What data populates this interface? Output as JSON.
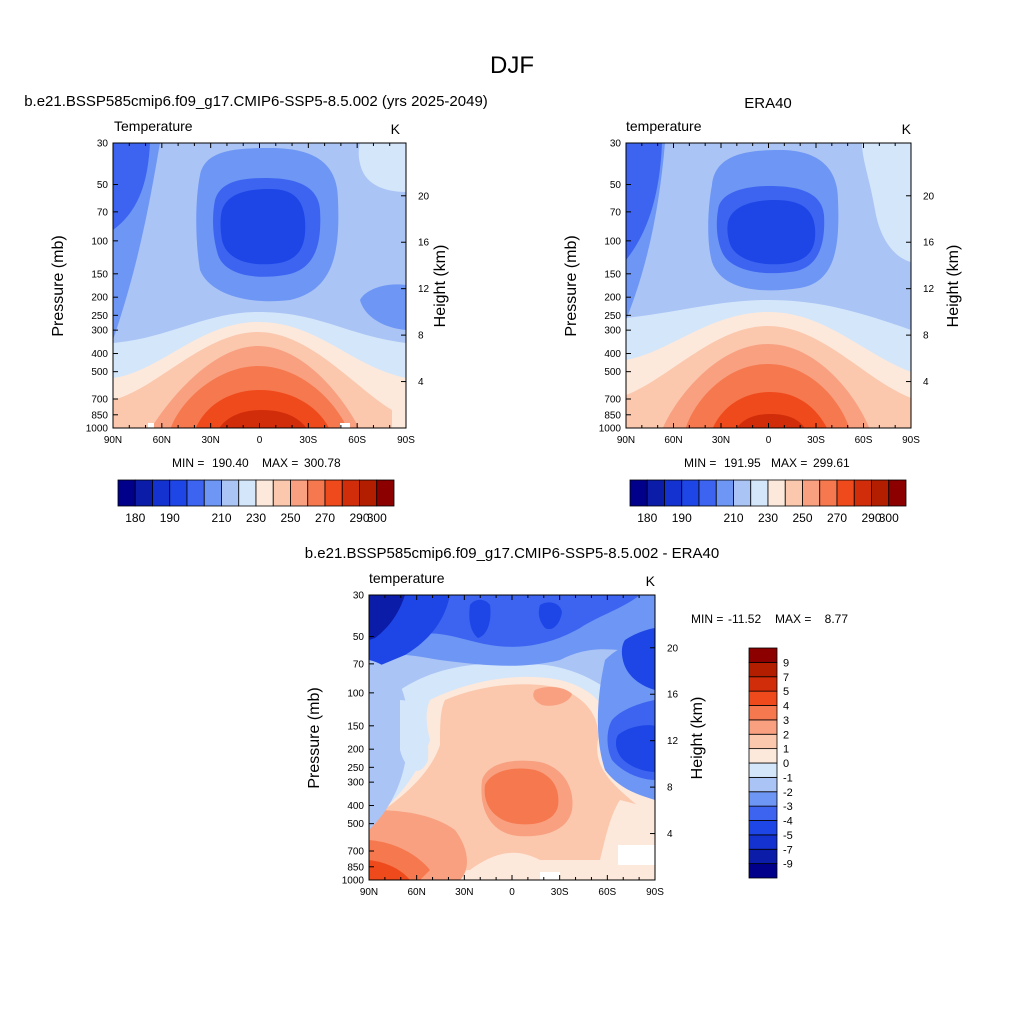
{
  "page_title": "DJF",
  "stat_label_min": "MIN =",
  "stat_label_max": "MAX =",
  "chart_data": [
    {
      "id": "model",
      "type": "heatmap",
      "title": "b.e21.BSSP585cmip6.f09_g17.CMIP6-SSP5-8.5.002 (yrs 2025-2049)",
      "left_string": "Temperature",
      "right_string": "K",
      "xlabel": "",
      "ylabel": "Pressure (mb)",
      "ylabel_right": "Height (km)",
      "x_ticks": [
        "90N",
        "60N",
        "30N",
        "0",
        "30S",
        "60S",
        "90S"
      ],
      "y_ticks": [
        30,
        50,
        70,
        100,
        150,
        200,
        250,
        300,
        400,
        500,
        700,
        850,
        1000
      ],
      "y_right_ticks": [
        4,
        8,
        12,
        16,
        20
      ],
      "ylim": [
        1000,
        30
      ],
      "y_log": true,
      "min_text": "190.40",
      "max_text": "300.78",
      "colorbar": {
        "orientation": "horizontal",
        "levels": [
          180,
          185,
          190,
          195,
          200,
          210,
          220,
          230,
          240,
          250,
          260,
          270,
          280,
          290,
          300
        ],
        "labels": [
          "180",
          "190",
          "210",
          "230",
          "250",
          "270",
          "290",
          "300"
        ],
        "label_levels": [
          180,
          190,
          210,
          230,
          250,
          270,
          290,
          300
        ]
      }
    },
    {
      "id": "obs",
      "type": "heatmap",
      "title": "ERA40",
      "left_string": "temperature",
      "right_string": "K",
      "xlabel": "",
      "ylabel": "Pressure (mb)",
      "ylabel_right": "Height (km)",
      "x_ticks": [
        "90N",
        "60N",
        "30N",
        "0",
        "30S",
        "60S",
        "90S"
      ],
      "y_ticks": [
        30,
        50,
        70,
        100,
        150,
        200,
        250,
        300,
        400,
        500,
        700,
        850,
        1000
      ],
      "y_right_ticks": [
        4,
        8,
        12,
        16,
        20
      ],
      "ylim": [
        1000,
        30
      ],
      "y_log": true,
      "min_text": "191.95",
      "max_text": "299.61",
      "colorbar": {
        "orientation": "horizontal",
        "levels": [
          180,
          185,
          190,
          195,
          200,
          210,
          220,
          230,
          240,
          250,
          260,
          270,
          280,
          290,
          300
        ],
        "labels": [
          "180",
          "190",
          "210",
          "230",
          "250",
          "270",
          "290",
          "300"
        ],
        "label_levels": [
          180,
          190,
          210,
          230,
          250,
          270,
          290,
          300
        ]
      }
    },
    {
      "id": "diff",
      "type": "heatmap",
      "title": "b.e21.BSSP585cmip6.f09_g17.CMIP6-SSP5-8.5.002 - ERA40",
      "left_string": "temperature",
      "right_string": "K",
      "xlabel": "",
      "ylabel": "Pressure (mb)",
      "ylabel_right": "Height (km)",
      "x_ticks": [
        "90N",
        "60N",
        "30N",
        "0",
        "30S",
        "60S",
        "90S"
      ],
      "y_ticks": [
        30,
        50,
        70,
        100,
        150,
        200,
        250,
        300,
        400,
        500,
        700,
        850,
        1000
      ],
      "y_right_ticks": [
        4,
        8,
        12,
        16,
        20
      ],
      "ylim": [
        1000,
        30
      ],
      "y_log": true,
      "min_text": "-11.52",
      "max_text": "  8.77",
      "colorbar": {
        "orientation": "vertical",
        "levels": [
          -9,
          -7,
          -5,
          -4,
          -3,
          -2,
          -1,
          0,
          1,
          2,
          3,
          4,
          5,
          7,
          9
        ],
        "labels": [
          "-9",
          "-7",
          "-5",
          "-4",
          "-3",
          "-2",
          "-1",
          "0",
          "1",
          "2",
          "3",
          "4",
          "5",
          "7",
          "9"
        ],
        "label_levels": [
          -9,
          -7,
          -5,
          -4,
          -3,
          -2,
          -1,
          0,
          1,
          2,
          3,
          4,
          5,
          7,
          9
        ]
      }
    }
  ],
  "palette": [
    "#00008b",
    "#0a1ca8",
    "#1432cf",
    "#1e46e6",
    "#3c64f0",
    "#6e96f5",
    "#aac4f5",
    "#d4e6fa",
    "#fde9db",
    "#fbc8ae",
    "#f8a080",
    "#f6784e",
    "#ef4a1c",
    "#d22d0a",
    "#b41e00",
    "#8c0000"
  ]
}
